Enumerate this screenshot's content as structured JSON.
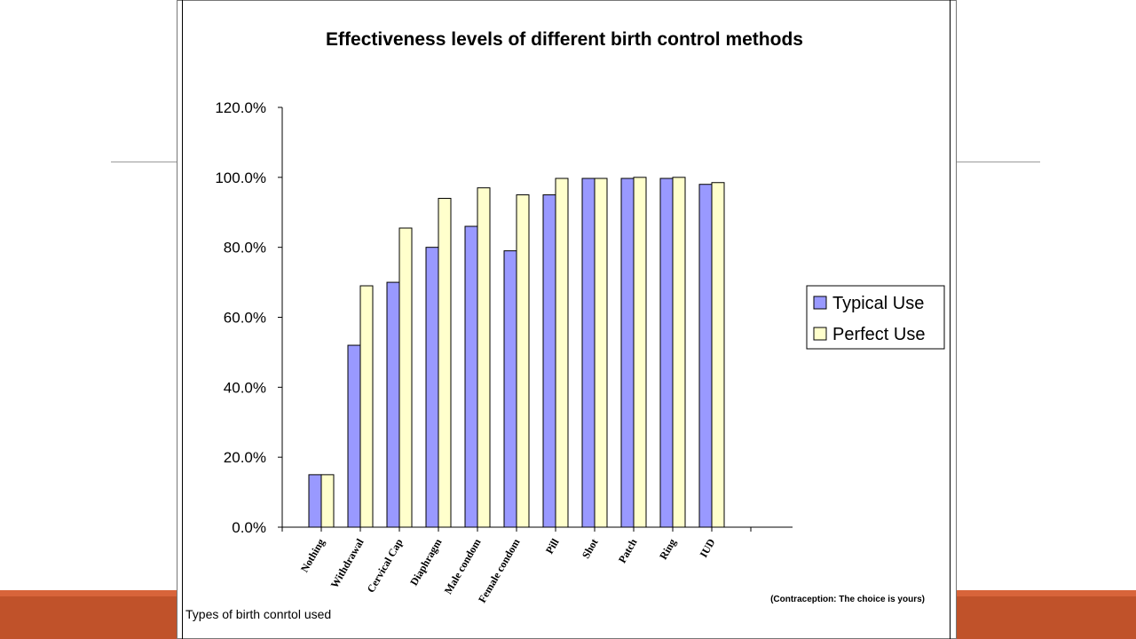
{
  "slide": {
    "accent_color": "#c0522a",
    "accent_top_color": "#d8643a",
    "rule_color": "#9a9a9a"
  },
  "chart_data": {
    "type": "bar",
    "title": "Effectiveness levels of different birth control methods",
    "xlabel": "Types of birth conrtol used",
    "ylabel": "",
    "ylim": [
      0,
      1.2
    ],
    "yticks": [
      "0.0%",
      "20.0%",
      "40.0%",
      "60.0%",
      "80.0%",
      "100.0%",
      "120.0%"
    ],
    "ytick_values": [
      0,
      0.2,
      0.4,
      0.6,
      0.8,
      1.0,
      1.2
    ],
    "categories": [
      "Nothing",
      "Withdrawal",
      "Cervical Cap",
      "Diaphragm",
      "Male condom",
      "Female condom",
      "Pill",
      "Shot",
      "Patch",
      "Ring",
      "IUD"
    ],
    "series": [
      {
        "name": "Typical Use",
        "color": "#9999ff",
        "values": [
          0.15,
          0.52,
          0.7,
          0.8,
          0.86,
          0.79,
          0.95,
          0.997,
          0.997,
          0.997,
          0.98
        ]
      },
      {
        "name": "Perfect Use",
        "color": "#ffffcc",
        "values": [
          0.15,
          0.69,
          0.855,
          0.94,
          0.97,
          0.95,
          0.997,
          0.997,
          1.0,
          1.0,
          0.985
        ]
      }
    ],
    "legend_position": "right",
    "grid": false,
    "annotation": "(Contraception: The choice is yours)"
  }
}
